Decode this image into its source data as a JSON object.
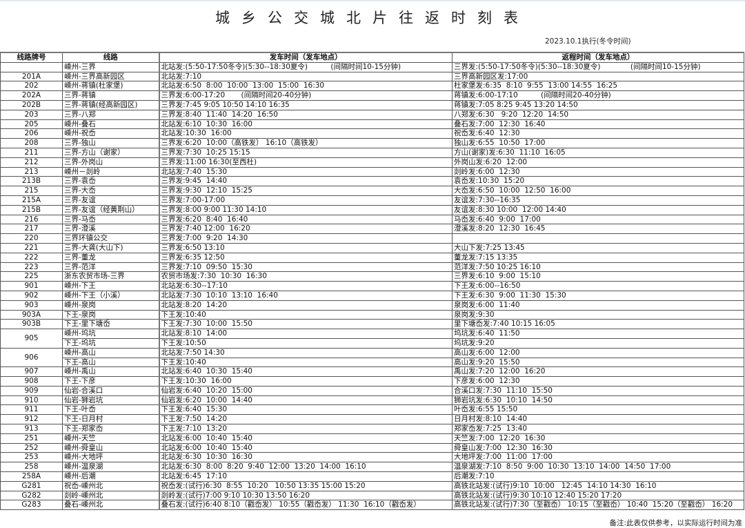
{
  "title": "城乡公交城北片往返时刻表",
  "effective_note": "2023.10.1执行(冬令时间)",
  "headers": {
    "route_no": "线路牌号",
    "route": "线路",
    "depart": "发车时间（发车地点）",
    "return": "返程时间（发车地点）"
  },
  "rows": [
    {
      "no": "",
      "lines": [
        {
          "route": "嵊州-三界",
          "depart": "北站发:(5:50-17:50冬令)(5:30--18:30夏令)          (间隔时间10-15分钟)",
          "return": "三界发:(5:50-17:50冬令)(5:30--18:30夏令)             (间隔时间10-15分钟)"
        }
      ]
    },
    {
      "no": "201A",
      "lines": [
        {
          "route": "嵊州-三界高新园区",
          "depart": "北站发:7:10",
          "return": "三界高新园区发:17:00"
        }
      ]
    },
    {
      "no": "202",
      "lines": [
        {
          "route": "嵊州-蒋镇(杜家堡)",
          "depart": "北站发:6:50  8:00  10:00  13:00  15:00  16:30",
          "return": "杜家堡发:6:35  8:10  9:55  13:00 14:55  16:25"
        }
      ]
    },
    {
      "no": "202A",
      "lines": [
        {
          "route": "三界-蒋镇",
          "depart": "三界发:6:00-17:20       (间隔时间20-40分钟)",
          "return": "蒋镇发:6:00-17:10          (间隔时间20-40分钟)"
        }
      ]
    },
    {
      "no": "202B",
      "lines": [
        {
          "route": "三界-蒋镇(经高新园区)",
          "depart": "三界发:7:45 9:05 10:50 14:10 16:35",
          "return": "蒋镇发:7:05 8:25 9:45 13:20 14:50"
        }
      ]
    },
    {
      "no": "203",
      "lines": [
        {
          "route": "三界-八郑",
          "depart": "三界发:8:40  11:40  14:20  16:50",
          "return": "八郑发:6:30   9:20  12:20  14:50"
        }
      ]
    },
    {
      "no": "205",
      "lines": [
        {
          "route": "嵊州-叠石",
          "depart": "北站发:6:10  10:30  16:00",
          "return": "叠石发:7:00  12:30  16:40"
        }
      ]
    },
    {
      "no": "206",
      "lines": [
        {
          "route": "嵊州-祝岙",
          "depart": "北站发:10:30  16:00",
          "return": "祝岙发:6:40  12:30"
        }
      ]
    },
    {
      "no": "208",
      "lines": [
        {
          "route": "三界-独山",
          "depart": "三界发:6:20  10:00（高铁发） 16:10（高铁发）",
          "return": "独山发:6:55  10:50  17:00"
        }
      ]
    },
    {
      "no": "211",
      "lines": [
        {
          "route": "三界-方山（谢家）",
          "depart": "三界发:7:30  10:25 15:15",
          "return": "方山(谢家)发:6:30  11:10  16:05"
        }
      ]
    },
    {
      "no": "212",
      "lines": [
        {
          "route": "三界-外岗山",
          "depart": "三界发:11:00 16:30(至西杜)",
          "return": "外岗山发:6:20  12:00"
        }
      ]
    },
    {
      "no": "213",
      "lines": [
        {
          "route": "嵊州－剡岭",
          "depart": "北站发:7:40  15:30",
          "return": "剡岭发:6:00  12:30"
        }
      ]
    },
    {
      "no": "213B",
      "lines": [
        {
          "route": "三界-袁岙",
          "depart": "三界发:9:45  14:40",
          "return": "袁岙发:10:30  15:20"
        }
      ]
    },
    {
      "no": "215",
      "lines": [
        {
          "route": "三界-大岙",
          "depart": "三界发:9:30  12:10  15:25",
          "return": "大岙发:6:50  10:00  12:50  16:00"
        }
      ]
    },
    {
      "no": "215A",
      "lines": [
        {
          "route": "三界-友谊",
          "depart": "三界发:7:00-17:00",
          "return": "友谊发:7:30--16:35"
        }
      ]
    },
    {
      "no": "215B",
      "lines": [
        {
          "route": "三界-友谊（经黄荆山）",
          "depart": "三界发:8:00 9:00 11:30 14:10",
          "return": "友谊发:8:30 10:00  12:00 14:40"
        }
      ]
    },
    {
      "no": "216",
      "lines": [
        {
          "route": "三界-马岙",
          "depart": "三界发:6:20  8:40  16:40",
          "return": "马岙发:6:40  9:00  17:00"
        }
      ]
    },
    {
      "no": "217",
      "lines": [
        {
          "route": "三界-澄溪",
          "depart": "三界发:7:40 12:00  16:20",
          "return": "澄溪发:8:20  12:30  16:45"
        }
      ]
    },
    {
      "no": "220",
      "lines": [
        {
          "route": "三界环镇公交",
          "depart": "三界发:7:00  9:20  14:30",
          "return": ""
        }
      ]
    },
    {
      "no": "221",
      "lines": [
        {
          "route": "三界-大龚(大山下)",
          "depart": "三界发:6:50 13:10",
          "return": "大山下发:7:25 13:45"
        }
      ]
    },
    {
      "no": "222",
      "lines": [
        {
          "route": "三界-董龙",
          "depart": "三界发:6:35 12:50",
          "return": "董龙发:7:15 13:35"
        }
      ]
    },
    {
      "no": "223",
      "lines": [
        {
          "route": "三界-范洋",
          "depart": "三界发:7:10  09:50  15:30",
          "return": "范洋发:7:50 10:25 16:10"
        }
      ]
    },
    {
      "no": "225",
      "lines": [
        {
          "route": "浙东农贸市场-三界",
          "depart": "农贸市场发:7:30  10:30  16:30",
          "return": "三界发:6:10  9:00  15:10"
        }
      ]
    },
    {
      "no": "901",
      "lines": [
        {
          "route": "嵊州-下王",
          "depart": "北站发:6:30--17:10",
          "return": "下王发:6:00--16:50"
        }
      ]
    },
    {
      "no": "902",
      "lines": [
        {
          "route": "嵊州-下王（小溪）",
          "depart": "北站发:7:30  10:10  13:10  16:40",
          "return": "下王发:6:30  9:00  11:30  15:30"
        }
      ]
    },
    {
      "no": "903",
      "lines": [
        {
          "route": "嵊州-泉岗",
          "depart": "北站发:8:20  14:20",
          "return": "泉岗发:6:00  11:40"
        }
      ]
    },
    {
      "no": "903A",
      "lines": [
        {
          "route": "下王-泉岗",
          "depart": "下王发:10:40",
          "return": "泉岗发:9:30"
        }
      ]
    },
    {
      "no": "903B",
      "lines": [
        {
          "route": "下王-里下塘岙",
          "depart": "下王发:7:30  10:00  15:50",
          "return": "里下塘岙发:7:40 10:15 16:05"
        }
      ]
    },
    {
      "no": "905",
      "lines": [
        {
          "route": "嵊州-坞坑",
          "depart": "北站发:8:10  14:00",
          "return": "坞坑发:6:40  11:50"
        },
        {
          "route": "下王-坞坑",
          "depart": "下王发:10:50",
          "return": "坞坑发:9:20"
        }
      ]
    },
    {
      "no": "906",
      "lines": [
        {
          "route": "嵊州-高山",
          "depart": "北站发:7:50 14:30",
          "return": "高山发:6:00  12:00"
        },
        {
          "route": "下王-高山",
          "depart": "下王发:10:40",
          "return": "高山发:9:20  15:50"
        }
      ]
    },
    {
      "no": "907",
      "lines": [
        {
          "route": "嵊州-禹山",
          "depart": "北站发:6:40  10:30  15:40",
          "return": "禹山发:7:20  12:00  16:20"
        }
      ]
    },
    {
      "no": "908",
      "lines": [
        {
          "route": "下王-下彦",
          "depart": "下王发:10:30  16:00",
          "return": "下彦发:6:00  12:30"
        }
      ]
    },
    {
      "no": "909",
      "lines": [
        {
          "route": "仙岩-合溪口",
          "depart": "仙岩发:6:40  10:20  15:00",
          "return": "合溪口发:7:30  11:10  15:50"
        }
      ]
    },
    {
      "no": "910",
      "lines": [
        {
          "route": "仙岩-狮岩坑",
          "depart": "仙岩发:6:20  10:00  14:40",
          "return": "狮岩坑发:6:30  10:10  14:50"
        }
      ]
    },
    {
      "no": "911",
      "lines": [
        {
          "route": "下王-叶岙",
          "depart": "下王发:6:40  15:30",
          "return": "叶岙发:6:55 15:50"
        }
      ]
    },
    {
      "no": "912",
      "lines": [
        {
          "route": "下王-日月村",
          "depart": "下王发:7:50  14:20",
          "return": "日月村发:8:10  14:40"
        }
      ]
    },
    {
      "no": "913",
      "lines": [
        {
          "route": "下王-郑家岙",
          "depart": "下王发:7:10  13:20",
          "return": "郑家岙发:7:25  13:40"
        }
      ]
    },
    {
      "no": "251",
      "lines": [
        {
          "route": "嵊州-天竺",
          "depart": "北站发:6:00  10:40  15:40",
          "return": "天竺发:7:00  12:20  16:30"
        }
      ]
    },
    {
      "no": "252",
      "lines": [
        {
          "route": "嵊州-舜皇山",
          "depart": "北站发:6:00  10:40  15:40",
          "return": "舜皇山发:7:00  12:30  16:30"
        }
      ]
    },
    {
      "no": "253",
      "lines": [
        {
          "route": "嵊州-大地坪",
          "depart": "北站发:6:30  10:30  16:30",
          "return": "大地坪发:7:00  11:00  17:00"
        }
      ]
    },
    {
      "no": "258",
      "lines": [
        {
          "route": "嵊州-温泉湖",
          "depart": "北站发:6:30  8:00  8:20  9:40  12:00  13:20  14:00  16:10",
          "return": "温泉湖发:7:10  8:50  9:00  10:30  13:10  14:00  14:50  17:00"
        }
      ]
    },
    {
      "no": "258A",
      "lines": [
        {
          "route": "嵊州-后潮",
          "depart": "北站发:6:45  17:10",
          "return": "后潮发:7:10"
        }
      ]
    },
    {
      "no": "G281",
      "lines": [
        {
          "route": "祝岙-嵊州北",
          "depart": "祝岙发:(试行)6:30  8:55  10:20   10:50 13:35 15:00 15:20",
          "return": "高铁北站发:(试行)9:10  10:00   12:45  14:10 14:30  16:10"
        }
      ]
    },
    {
      "no": "G282",
      "lines": [
        {
          "route": "剡岭-嵊州北",
          "depart": "剡岭发:(试行)7:00 9:10 10:30 13:50 16:20",
          "return": "高铁北站发:(试行)9:30 10:10 12:40 15:20 17:20"
        }
      ]
    },
    {
      "no": "G283",
      "lines": [
        {
          "route": "叠石-嵊州北",
          "depart": "叠石发:(试行)6:40 8:10（戳岙发） 10:55（戳岙发） 11:30  16:10（戳岙发）",
          "return": "高铁北站发:(试行)7:30（至戳岙） 10:15（至戳岙） 10:40  15:20（至戳岙） 16:20"
        }
      ]
    }
  ],
  "footnote": "备注:此表仅供参考，以实际运行时间为准"
}
